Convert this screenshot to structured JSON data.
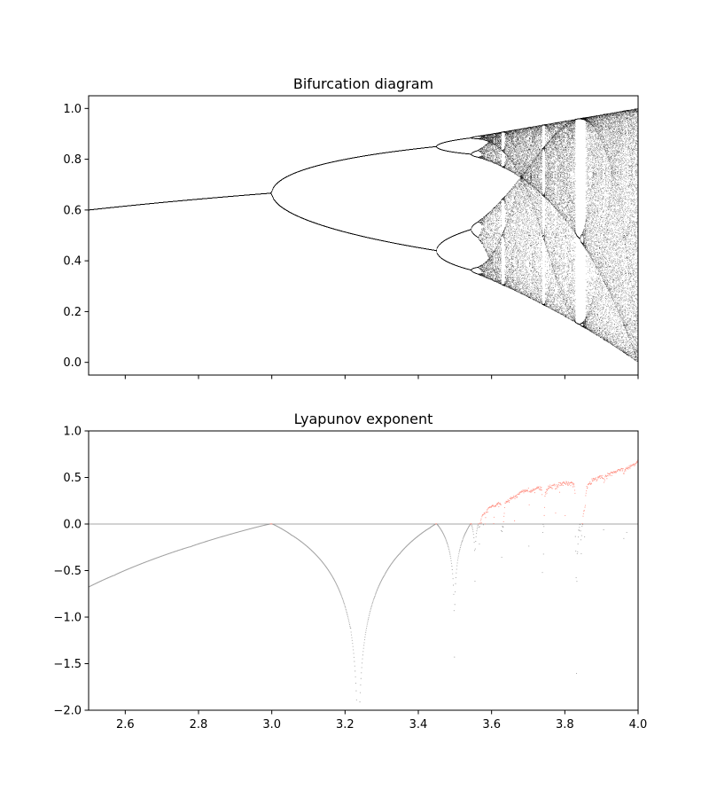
{
  "chart_data": [
    {
      "type": "scatter",
      "title": "Bifurcation diagram",
      "xlabel": "",
      "ylabel": "",
      "xlim": [
        2.5,
        4.0
      ],
      "ylim": [
        -0.05,
        1.05
      ],
      "x_ticks": [
        2.6,
        2.8,
        3.0,
        3.2,
        3.4,
        3.6,
        3.8,
        4.0
      ],
      "x_tick_labels_shown": false,
      "y_ticks": [
        0.0,
        0.2,
        0.4,
        0.6,
        0.8,
        1.0
      ],
      "y_tick_labels": [
        "0.0",
        "0.2",
        "0.4",
        "0.6",
        "0.8",
        "1.0"
      ],
      "grid": false,
      "series": [
        {
          "model": "logistic map x_{n+1} = r x_n (1 - x_n)",
          "color": "#000000",
          "r_range": [
            2.5,
            4.0
          ],
          "r_steps": 1500,
          "iterations": 1000,
          "last_iterations_plotted": 100,
          "x0": 1e-05
        }
      ]
    },
    {
      "type": "scatter",
      "title": "Lyapunov exponent",
      "xlabel": "",
      "ylabel": "",
      "xlim": [
        2.5,
        4.0
      ],
      "ylim": [
        -2.0,
        1.0
      ],
      "x_ticks": [
        2.6,
        2.8,
        3.0,
        3.2,
        3.4,
        3.6,
        3.8,
        4.0
      ],
      "x_tick_labels": [
        "2.6",
        "2.8",
        "3.0",
        "3.2",
        "3.4",
        "3.6",
        "3.8",
        "4.0"
      ],
      "y_ticks": [
        -2.0,
        -1.5,
        -1.0,
        -0.5,
        0.0,
        0.5,
        1.0
      ],
      "y_tick_labels": [
        "−2.0",
        "−1.5",
        "−1.0",
        "−0.5",
        "0.0",
        "0.5",
        "1.0"
      ],
      "grid": false,
      "reference_line": {
        "y": 0,
        "color": "#888888"
      },
      "series": [
        {
          "condition": "lyapunov < 0",
          "color": "#808080"
        },
        {
          "condition": "lyapunov >= 0",
          "color": "#ff6b5a"
        }
      ]
    }
  ]
}
